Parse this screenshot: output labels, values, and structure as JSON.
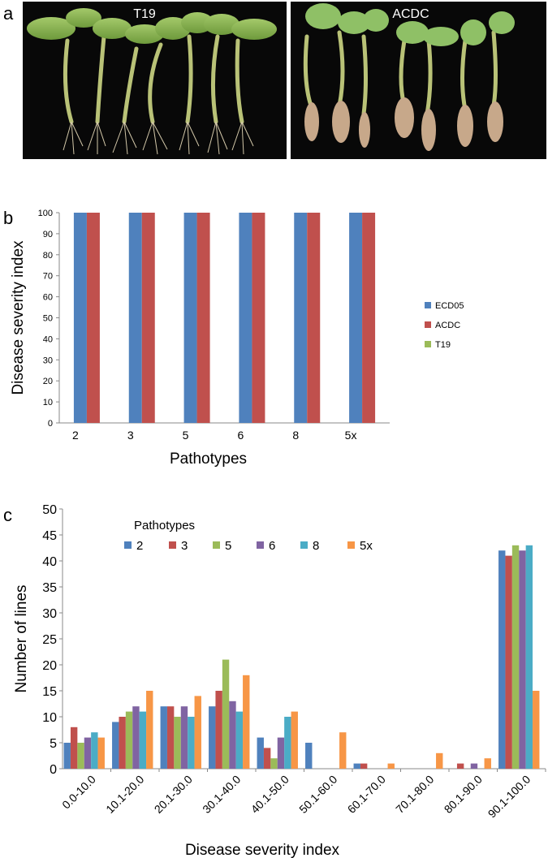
{
  "panels": {
    "a": {
      "letter": "a",
      "left_label": "T19",
      "right_label": "ACDC"
    },
    "b": {
      "letter": "b"
    },
    "c": {
      "letter": "c"
    }
  },
  "colors": {
    "blue": "#4f81bd",
    "red": "#c0504d",
    "green": "#9bbb59",
    "purple": "#8064a2",
    "teal": "#4bacc6",
    "orange": "#f79646"
  },
  "chart_data": [
    {
      "type": "bar",
      "id": "b",
      "title": "",
      "xlabel": "Pathotypes",
      "ylabel": "Disease severity index",
      "ylim": [
        0,
        100
      ],
      "yticks": [
        0,
        10,
        20,
        30,
        40,
        50,
        60,
        70,
        80,
        90,
        100
      ],
      "categories": [
        "2",
        "3",
        "5",
        "6",
        "8",
        "5x"
      ],
      "series": [
        {
          "name": "ECD05",
          "color": "#4f81bd",
          "values": [
            100,
            100,
            100,
            100,
            100,
            100
          ]
        },
        {
          "name": "ACDC",
          "color": "#c0504d",
          "values": [
            100,
            100,
            100,
            100,
            100,
            100
          ]
        },
        {
          "name": "T19",
          "color": "#9bbb59",
          "values": [
            0,
            0,
            0,
            0,
            0,
            0
          ]
        }
      ],
      "legend": "right",
      "grid": false
    },
    {
      "type": "bar",
      "id": "c",
      "title": "",
      "xlabel": "Disease severity index",
      "ylabel": "Number of lines",
      "ylim": [
        0,
        50
      ],
      "yticks": [
        0,
        5,
        10,
        15,
        20,
        25,
        30,
        35,
        40,
        45,
        50
      ],
      "categories": [
        "0.0-10.0",
        "10.1-20.0",
        "20.1-30.0",
        "30.1-40.0",
        "40.1-50.0",
        "50.1-60.0",
        "60.1-70.0",
        "70.1-80.0",
        "80.1-90.0",
        "90.1-100.0"
      ],
      "legend_title": "Pathotypes",
      "series": [
        {
          "name": "2",
          "color": "#4f81bd",
          "values": [
            5,
            9,
            12,
            12,
            6,
            5,
            1,
            0,
            0,
            42
          ]
        },
        {
          "name": "3",
          "color": "#c0504d",
          "values": [
            8,
            10,
            12,
            15,
            4,
            0,
            1,
            0,
            1,
            41
          ]
        },
        {
          "name": "5",
          "color": "#9bbb59",
          "values": [
            5,
            11,
            10,
            21,
            2,
            0,
            0,
            0,
            0,
            43
          ]
        },
        {
          "name": "6",
          "color": "#8064a2",
          "values": [
            6,
            12,
            12,
            13,
            6,
            0,
            0,
            0,
            1,
            42
          ]
        },
        {
          "name": "8",
          "color": "#4bacc6",
          "values": [
            7,
            11,
            10,
            11,
            10,
            0,
            0,
            0,
            0,
            43
          ]
        },
        {
          "name": "5x",
          "color": "#f79646",
          "values": [
            6,
            15,
            14,
            18,
            11,
            7,
            1,
            3,
            2,
            15
          ]
        }
      ],
      "legend": "top-left",
      "grid": false
    }
  ]
}
